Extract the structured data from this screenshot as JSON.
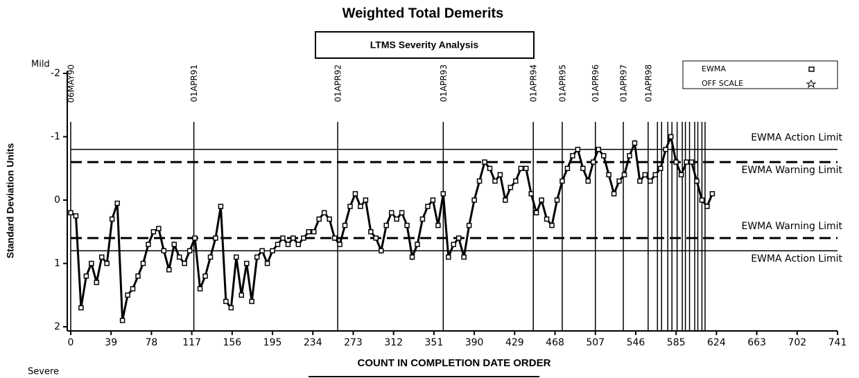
{
  "chart_data": {
    "type": "line",
    "title": "Weighted Total Demerits",
    "subtitle": "LTMS Severity Analysis",
    "x_label": "COUNT IN COMPLETION DATE ORDER",
    "y_label": "Standard Deviation Units",
    "y_top_note": "Mild",
    "y_bottom_note": "Severe",
    "xlim": [
      0,
      741
    ],
    "xticks": [
      0,
      39,
      78,
      117,
      156,
      195,
      234,
      273,
      312,
      351,
      390,
      429,
      468,
      507,
      546,
      585,
      624,
      663,
      702,
      741
    ],
    "ylim": [
      -2,
      2
    ],
    "y_reversed": true,
    "yticks": [
      -2,
      -1,
      0,
      1,
      2
    ],
    "legend": "upper right",
    "legend_entries": [
      "EWMA",
      "OFF SCALE"
    ],
    "reference_lines": [
      {
        "value": -0.8,
        "label": "EWMA Action Limit",
        "style": "solid"
      },
      {
        "value": -0.6,
        "label": "EWMA Warning Limit",
        "style": "dashed"
      },
      {
        "value": 0.6,
        "label": "EWMA Warning Limit",
        "style": "dashed"
      },
      {
        "value": 0.8,
        "label": "EWMA Action Limit",
        "style": "solid"
      }
    ],
    "date_lines": [
      {
        "x": 0,
        "label": "06MAY90"
      },
      {
        "x": 119,
        "label": "01APR91"
      },
      {
        "x": 258,
        "label": "01APR92"
      },
      {
        "x": 360,
        "label": "01APR93"
      },
      {
        "x": 447,
        "label": "01APR94"
      },
      {
        "x": 475,
        "label": "01APR95"
      },
      {
        "x": 507,
        "label": "01APR96"
      },
      {
        "x": 534,
        "label": "01APR97"
      },
      {
        "x": 558,
        "label": "01APR98"
      },
      {
        "x": 567,
        "label": null
      },
      {
        "x": 571,
        "label": null
      },
      {
        "x": 577,
        "label": null
      },
      {
        "x": 581,
        "label": null
      },
      {
        "x": 586,
        "label": null
      },
      {
        "x": 591,
        "label": null
      },
      {
        "x": 594,
        "label": null
      },
      {
        "x": 598,
        "label": null
      },
      {
        "x": 603,
        "label": null
      },
      {
        "x": 606,
        "label": null
      },
      {
        "x": 610,
        "label": null
      },
      {
        "x": 613,
        "label": null
      }
    ],
    "series": [
      {
        "name": "EWMA",
        "color": "#000000",
        "x": [
          0,
          5,
          10,
          15,
          20,
          25,
          30,
          35,
          40,
          45,
          50,
          55,
          60,
          65,
          70,
          75,
          80,
          85,
          90,
          95,
          100,
          105,
          110,
          115,
          120,
          125,
          130,
          135,
          140,
          145,
          150,
          155,
          160,
          165,
          170,
          175,
          180,
          185,
          190,
          195,
          200,
          205,
          210,
          215,
          220,
          225,
          230,
          235,
          240,
          245,
          250,
          255,
          260,
          265,
          270,
          275,
          280,
          285,
          290,
          295,
          300,
          305,
          310,
          315,
          320,
          325,
          330,
          335,
          340,
          345,
          350,
          355,
          360,
          365,
          370,
          375,
          380,
          385,
          390,
          395,
          400,
          405,
          410,
          415,
          420,
          425,
          430,
          435,
          440,
          445,
          450,
          455,
          460,
          465,
          470,
          475,
          480,
          485,
          490,
          495,
          500,
          505,
          510,
          515,
          520,
          525,
          530,
          535,
          540,
          545,
          550,
          555,
          560,
          565,
          570,
          575,
          580,
          585,
          590,
          595,
          600,
          605,
          610,
          615,
          620
        ],
        "values": [
          0.2,
          0.25,
          1.7,
          1.2,
          1.0,
          1.3,
          0.9,
          1.0,
          0.3,
          0.05,
          1.9,
          1.5,
          1.4,
          1.2,
          1.0,
          0.7,
          0.5,
          0.45,
          0.8,
          1.1,
          0.7,
          0.9,
          1.0,
          0.8,
          0.6,
          1.4,
          1.2,
          0.9,
          0.6,
          0.1,
          1.6,
          1.7,
          0.9,
          1.5,
          1.0,
          1.6,
          0.9,
          0.8,
          1.0,
          0.8,
          0.7,
          0.6,
          0.7,
          0.6,
          0.7,
          0.6,
          0.5,
          0.5,
          0.3,
          0.2,
          0.3,
          0.6,
          0.7,
          0.4,
          0.1,
          -0.1,
          0.1,
          0.0,
          0.5,
          0.6,
          0.8,
          0.4,
          0.2,
          0.3,
          0.2,
          0.4,
          0.9,
          0.7,
          0.3,
          0.1,
          0.0,
          0.4,
          -0.1,
          0.9,
          0.7,
          0.6,
          0.9,
          0.4,
          0.0,
          -0.3,
          -0.6,
          -0.5,
          -0.3,
          -0.4,
          0.0,
          -0.2,
          -0.3,
          -0.5,
          -0.5,
          -0.1,
          0.2,
          0.0,
          0.3,
          0.4,
          0.0,
          -0.3,
          -0.5,
          -0.7,
          -0.8,
          -0.5,
          -0.3,
          -0.6,
          -0.8,
          -0.7,
          -0.4,
          -0.1,
          -0.3,
          -0.4,
          -0.7,
          -0.9,
          -0.3,
          -0.4,
          -0.3,
          -0.4,
          -0.5,
          -0.8,
          -1.0,
          -0.6,
          -0.4,
          -0.6,
          -0.6,
          -0.3,
          0.0,
          0.1,
          -0.1
        ]
      }
    ]
  }
}
